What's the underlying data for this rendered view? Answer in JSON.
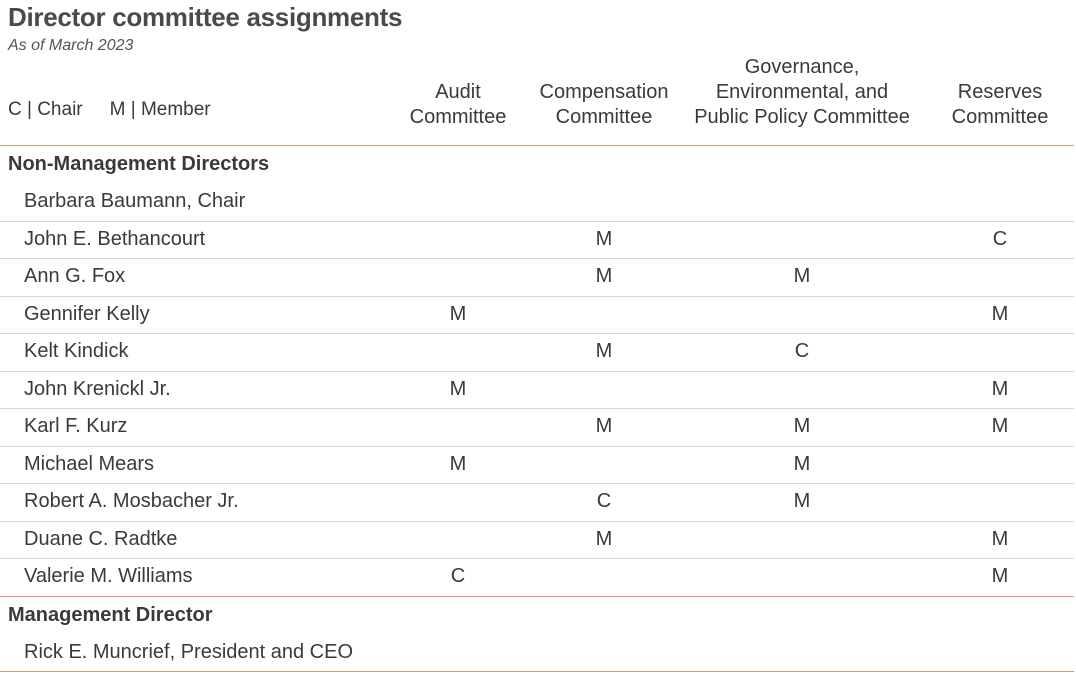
{
  "header": {
    "title": "Director committee assignments",
    "subtitle": "As of March 2023"
  },
  "legend": {
    "chair": "C | Chair",
    "member": "M | Member"
  },
  "columns": [
    {
      "lines": [
        "Audit",
        "Committee"
      ]
    },
    {
      "lines": [
        "Compensation",
        "Committee"
      ]
    },
    {
      "lines": [
        "Governance,",
        "Environmental, and",
        "Public Policy Committee"
      ]
    },
    {
      "lines": [
        "Reserves",
        "Committee"
      ]
    }
  ],
  "sections": [
    {
      "heading": "Non-Management Directors",
      "rows": [
        {
          "name": "Barbara Baumann, Chair",
          "cells": [
            "",
            "",
            "",
            ""
          ]
        },
        {
          "name": "John E. Bethancourt",
          "cells": [
            "",
            "M",
            "",
            "C"
          ]
        },
        {
          "name": "Ann G. Fox",
          "cells": [
            "",
            "M",
            "M",
            ""
          ]
        },
        {
          "name": "Gennifer Kelly",
          "cells": [
            "M",
            "",
            "",
            "M"
          ]
        },
        {
          "name": "Kelt Kindick",
          "cells": [
            "",
            "M",
            "C",
            ""
          ]
        },
        {
          "name": "John Krenickl Jr.",
          "cells": [
            "M",
            "",
            "",
            "M"
          ]
        },
        {
          "name": "Karl F. Kurz",
          "cells": [
            "",
            "M",
            "M",
            "M"
          ]
        },
        {
          "name": "Michael Mears",
          "cells": [
            "M",
            "",
            "M",
            ""
          ]
        },
        {
          "name": "Robert A. Mosbacher Jr.",
          "cells": [
            "",
            "C",
            "M",
            ""
          ]
        },
        {
          "name": "Duane C. Radtke",
          "cells": [
            "",
            "M",
            "",
            "M"
          ]
        },
        {
          "name": "Valerie M. Williams",
          "cells": [
            "C",
            "",
            "",
            "M"
          ]
        }
      ]
    },
    {
      "heading": "Management Director",
      "rows": [
        {
          "name": "Rick E. Muncrief, President and CEO",
          "cells": [
            "",
            "",
            "",
            ""
          ]
        }
      ]
    }
  ],
  "colors": {
    "accent_rule": "#e6907e",
    "row_rule": "#d6d6d6",
    "text": "#3a3a3a"
  }
}
